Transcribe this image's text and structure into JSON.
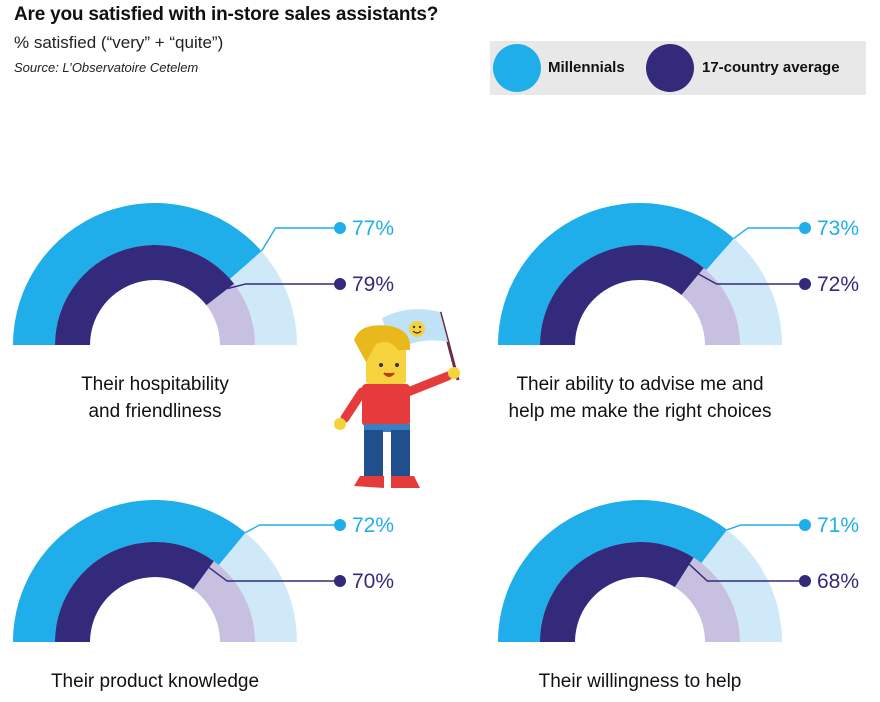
{
  "title": "Are you satisfied with in-store sales assistants?",
  "subtitle": "% satisfied (“very” + “quite”)",
  "source": "Source: L’Observatoire Cetelem",
  "legend": {
    "millennials": "Millennials",
    "average": "17-country average"
  },
  "colors": {
    "millennials": "#1faee9",
    "millennials_track": "#cfe9f8",
    "average": "#332a7c",
    "average_track": "#c7c0e0",
    "leader_millennials": "#1faee9",
    "leader_average": "#332a7c"
  },
  "chart_data": {
    "type": "gauge",
    "categories": [
      "Their hospitability and friendliness",
      "Their ability to advise me and help me make the right choices",
      "Their product knowledge",
      "Their willingness to help"
    ],
    "series": [
      {
        "name": "Millennials",
        "values": [
          77,
          73,
          72,
          71
        ]
      },
      {
        "name": "17-country average",
        "values": [
          79,
          72,
          70,
          68
        ]
      }
    ],
    "unit": "%",
    "range": [
      0,
      100
    ]
  },
  "gauges": [
    {
      "caption_lines": [
        "Their hospitability",
        "and friendliness"
      ],
      "millennials_label": "77%",
      "average_label": "79%"
    },
    {
      "caption_lines": [
        "Their ability to advise me and",
        "help me make the right choices"
      ],
      "millennials_label": "73%",
      "average_label": "72%"
    },
    {
      "caption_lines": [
        "Their product knowledge"
      ],
      "millennials_label": "72%",
      "average_label": "70%"
    },
    {
      "caption_lines": [
        "Their willingness to help"
      ],
      "millennials_label": "71%",
      "average_label": "68%"
    }
  ]
}
